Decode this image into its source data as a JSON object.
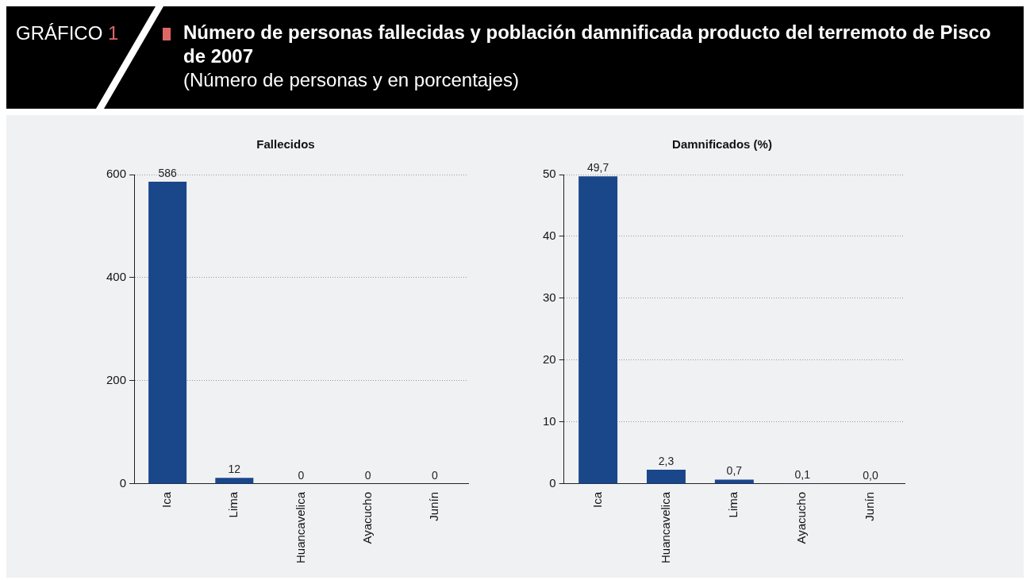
{
  "chart_data": [
    {
      "type": "other",
      "title": "Número de personas fallecidas y población damnificada producto del terremoto de Pisco de 2007",
      "subtitle": "(Número de personas y en porcentajes)",
      "annotations": [
        "GRÁFICO 1"
      ]
    },
    {
      "type": "bar",
      "title": "Fallecidos",
      "categories": [
        "Ica",
        "Lima",
        "Huancavelica",
        "Ayacucho",
        "Junín"
      ],
      "values": [
        586,
        12,
        0,
        0,
        0
      ],
      "value_labels": [
        "586",
        "12",
        "0",
        "0",
        "0"
      ],
      "color": "#1a468a",
      "ylim": [
        0,
        600
      ],
      "yticks": [
        0,
        200,
        400,
        600
      ],
      "grid": "y"
    },
    {
      "type": "bar",
      "title": "Damnificados (%)",
      "categories": [
        "Ica",
        "Huancavelica",
        "Lima",
        "Ayacucho",
        "Junín"
      ],
      "values": [
        49.7,
        2.3,
        0.7,
        0.1,
        0.0
      ],
      "value_labels": [
        "49,7",
        "2,3",
        "0,7",
        "0,1",
        "0,0"
      ],
      "color": "#1a468a",
      "ylim": [
        0,
        50
      ],
      "yticks": [
        0,
        10,
        20,
        30,
        40,
        50
      ],
      "grid": "y"
    }
  ]
}
